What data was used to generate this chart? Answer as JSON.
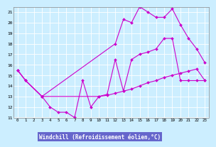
{
  "bg_color": "#cceeff",
  "plot_bg": "#cceeff",
  "line_color": "#cc00cc",
  "grid_color": "#aadddd",
  "xlabel": "Windchill (Refroidissement éolien,°C)",
  "xlabel_bg": "#6666cc",
  "xlim": [
    -0.5,
    23.5
  ],
  "ylim": [
    11,
    21.5
  ],
  "xtick_labels": [
    "0",
    "1",
    "2",
    "3",
    "4",
    "5",
    "6",
    "7",
    "8",
    "9",
    "10",
    "11",
    "12",
    "13",
    "14",
    "15",
    "16",
    "17",
    "18",
    "19",
    "20",
    "21",
    "22",
    "23"
  ],
  "ytick_labels": [
    "11",
    "12",
    "13",
    "14",
    "15",
    "16",
    "17",
    "18",
    "19",
    "20",
    "21"
  ],
  "ytick_vals": [
    11,
    12,
    13,
    14,
    15,
    16,
    17,
    18,
    19,
    20,
    21
  ],
  "xtick_vals": [
    0,
    1,
    2,
    3,
    4,
    5,
    6,
    7,
    8,
    9,
    10,
    11,
    12,
    13,
    14,
    15,
    16,
    17,
    18,
    19,
    20,
    21,
    22,
    23
  ],
  "line_upper_x": [
    0,
    1,
    3,
    12,
    13,
    14,
    15,
    16,
    17,
    18,
    19,
    20,
    21,
    22,
    23
  ],
  "line_upper_y": [
    15.5,
    14.5,
    13.0,
    18.0,
    20.3,
    20.0,
    21.5,
    21.0,
    20.5,
    20.5,
    21.3,
    19.8,
    18.5,
    17.5,
    16.2
  ],
  "line_lower_x": [
    0,
    1,
    3,
    4,
    5,
    6,
    7,
    8,
    9,
    10,
    11,
    12,
    13,
    14,
    15,
    16,
    17,
    18,
    19,
    20,
    21,
    22,
    23
  ],
  "line_lower_y": [
    15.5,
    14.5,
    13.0,
    12.0,
    11.5,
    11.5,
    11.0,
    14.5,
    12.0,
    13.0,
    13.2,
    16.5,
    13.5,
    16.5,
    17.0,
    17.2,
    17.5,
    18.5,
    18.5,
    14.5,
    14.5,
    14.5,
    14.5
  ],
  "line_mid_x": [
    0,
    1,
    3,
    10,
    11,
    12,
    13,
    14,
    15,
    16,
    17,
    18,
    19,
    20,
    21,
    22,
    23
  ],
  "line_mid_y": [
    15.5,
    14.5,
    13.0,
    13.0,
    13.1,
    13.3,
    13.5,
    13.7,
    14.0,
    14.3,
    14.5,
    14.8,
    15.0,
    15.2,
    15.4,
    15.6,
    14.5
  ]
}
